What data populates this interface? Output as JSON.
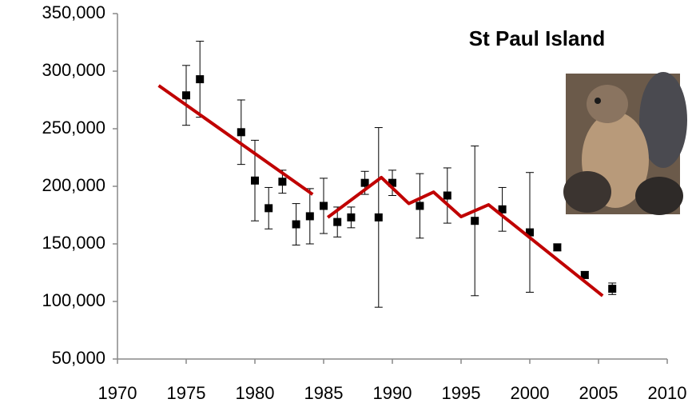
{
  "chart_data": {
    "type": "scatter",
    "title": "St Paul Island",
    "x": [
      1975,
      1976,
      1979,
      1980,
      1981,
      1982,
      1983,
      1984,
      1985,
      1986,
      1987,
      1988,
      1989,
      1990,
      1992,
      1994,
      1996,
      1998,
      2000,
      2002,
      2004,
      2006
    ],
    "values": [
      279000,
      293000,
      247000,
      205000,
      181000,
      204000,
      167000,
      174000,
      183000,
      169000,
      173000,
      203000,
      173000,
      203000,
      183000,
      192000,
      170000,
      180000,
      160000,
      147000,
      123000,
      111000
    ],
    "errors": [
      26000,
      33000,
      28000,
      35000,
      18000,
      10000,
      18000,
      24000,
      24000,
      13000,
      9000,
      10000,
      78000,
      11000,
      28000,
      24000,
      65000,
      19000,
      52000,
      3000,
      3000,
      5000
    ],
    "color": "#000000",
    "trend": {
      "x": [
        1973,
        1984.2,
        null,
        1985.3,
        1989.2,
        1991.2,
        1993,
        1995,
        1997,
        2005.3
      ],
      "values": [
        287500,
        193000,
        null,
        173000,
        207700,
        185000,
        195000,
        173600,
        184000,
        104900
      ],
      "color": "#c00000"
    },
    "xlim": [
      1970,
      2010
    ],
    "xticks": [
      1970,
      1975,
      1980,
      1985,
      1990,
      1995,
      2000,
      2005,
      2010
    ],
    "ylim": [
      50000,
      350000
    ],
    "yticks": [
      {
        "value": 50000,
        "label": "50,000"
      },
      {
        "value": 100000,
        "label": "100,000"
      },
      {
        "value": 150000,
        "label": "150,000"
      },
      {
        "value": 200000,
        "label": "200,000"
      },
      {
        "value": 250000,
        "label": "250,000"
      },
      {
        "value": 300000,
        "label": "300,000"
      },
      {
        "value": 350000,
        "label": "350,000"
      }
    ]
  }
}
